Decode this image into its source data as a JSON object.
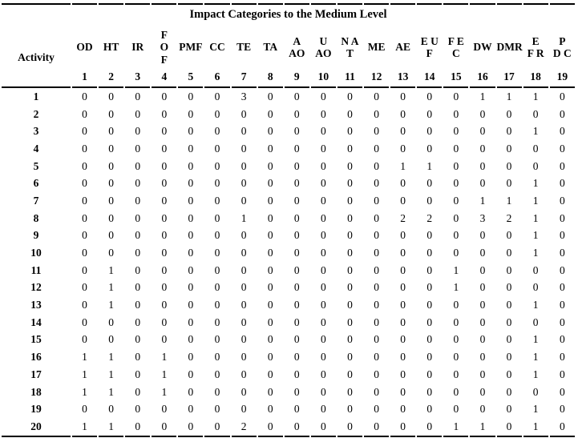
{
  "style": {
    "text_color": "#000000",
    "background": "#ffffff",
    "rule_color": "#000000"
  },
  "table": {
    "title": "Impact Categories to the Medium Level",
    "activity_header": "Activity",
    "columns": [
      {
        "abbr": "OD",
        "num": "1"
      },
      {
        "abbr": "HT",
        "num": "2"
      },
      {
        "abbr": "IR",
        "num": "3"
      },
      {
        "abbr": "F\nO\nF",
        "num": "4"
      },
      {
        "abbr": "PMF",
        "num": "5"
      },
      {
        "abbr": "CC",
        "num": "6"
      },
      {
        "abbr": "TE",
        "num": "7"
      },
      {
        "abbr": "TA",
        "num": "8"
      },
      {
        "abbr": "A\nAO",
        "num": "9"
      },
      {
        "abbr": "U\nAO",
        "num": "10"
      },
      {
        "abbr": "N A\nT",
        "num": "11"
      },
      {
        "abbr": "ME",
        "num": "12"
      },
      {
        "abbr": "AE",
        "num": "13"
      },
      {
        "abbr": "E U\nF",
        "num": "14"
      },
      {
        "abbr": "F E\nC",
        "num": "15"
      },
      {
        "abbr": "DW",
        "num": "16"
      },
      {
        "abbr": "DMR",
        "num": "17"
      },
      {
        "abbr": "E\nF R",
        "num": "18"
      },
      {
        "abbr": "P\nD C",
        "num": "19"
      }
    ],
    "rows": [
      {
        "activity": "1",
        "values": [
          0,
          0,
          0,
          0,
          0,
          0,
          3,
          0,
          0,
          0,
          0,
          0,
          0,
          0,
          0,
          1,
          1,
          1,
          0
        ]
      },
      {
        "activity": "2",
        "values": [
          0,
          0,
          0,
          0,
          0,
          0,
          0,
          0,
          0,
          0,
          0,
          0,
          0,
          0,
          0,
          0,
          0,
          0,
          0
        ]
      },
      {
        "activity": "3",
        "values": [
          0,
          0,
          0,
          0,
          0,
          0,
          0,
          0,
          0,
          0,
          0,
          0,
          0,
          0,
          0,
          0,
          0,
          1,
          0
        ]
      },
      {
        "activity": "4",
        "values": [
          0,
          0,
          0,
          0,
          0,
          0,
          0,
          0,
          0,
          0,
          0,
          0,
          0,
          0,
          0,
          0,
          0,
          0,
          0
        ]
      },
      {
        "activity": "5",
        "values": [
          0,
          0,
          0,
          0,
          0,
          0,
          0,
          0,
          0,
          0,
          0,
          0,
          1,
          1,
          0,
          0,
          0,
          0,
          0
        ]
      },
      {
        "activity": "6",
        "values": [
          0,
          0,
          0,
          0,
          0,
          0,
          0,
          0,
          0,
          0,
          0,
          0,
          0,
          0,
          0,
          0,
          0,
          1,
          0
        ]
      },
      {
        "activity": "7",
        "values": [
          0,
          0,
          0,
          0,
          0,
          0,
          0,
          0,
          0,
          0,
          0,
          0,
          0,
          0,
          0,
          1,
          1,
          1,
          0
        ]
      },
      {
        "activity": "8",
        "values": [
          0,
          0,
          0,
          0,
          0,
          0,
          1,
          0,
          0,
          0,
          0,
          0,
          2,
          2,
          0,
          3,
          2,
          1,
          0
        ]
      },
      {
        "activity": "9",
        "values": [
          0,
          0,
          0,
          0,
          0,
          0,
          0,
          0,
          0,
          0,
          0,
          0,
          0,
          0,
          0,
          0,
          0,
          1,
          0
        ]
      },
      {
        "activity": "10",
        "values": [
          0,
          0,
          0,
          0,
          0,
          0,
          0,
          0,
          0,
          0,
          0,
          0,
          0,
          0,
          0,
          0,
          0,
          1,
          0
        ]
      },
      {
        "activity": "11",
        "values": [
          0,
          1,
          0,
          0,
          0,
          0,
          0,
          0,
          0,
          0,
          0,
          0,
          0,
          0,
          1,
          0,
          0,
          0,
          0
        ]
      },
      {
        "activity": "12",
        "values": [
          0,
          1,
          0,
          0,
          0,
          0,
          0,
          0,
          0,
          0,
          0,
          0,
          0,
          0,
          1,
          0,
          0,
          0,
          0
        ]
      },
      {
        "activity": "13",
        "values": [
          0,
          1,
          0,
          0,
          0,
          0,
          0,
          0,
          0,
          0,
          0,
          0,
          0,
          0,
          0,
          0,
          0,
          1,
          0
        ]
      },
      {
        "activity": "14",
        "values": [
          0,
          0,
          0,
          0,
          0,
          0,
          0,
          0,
          0,
          0,
          0,
          0,
          0,
          0,
          0,
          0,
          0,
          0,
          0
        ]
      },
      {
        "activity": "15",
        "values": [
          0,
          0,
          0,
          0,
          0,
          0,
          0,
          0,
          0,
          0,
          0,
          0,
          0,
          0,
          0,
          0,
          0,
          1,
          0
        ]
      },
      {
        "activity": "16",
        "values": [
          1,
          1,
          0,
          1,
          0,
          0,
          0,
          0,
          0,
          0,
          0,
          0,
          0,
          0,
          0,
          0,
          0,
          1,
          0
        ]
      },
      {
        "activity": "17",
        "values": [
          1,
          1,
          0,
          1,
          0,
          0,
          0,
          0,
          0,
          0,
          0,
          0,
          0,
          0,
          0,
          0,
          0,
          1,
          0
        ]
      },
      {
        "activity": "18",
        "values": [
          1,
          1,
          0,
          1,
          0,
          0,
          0,
          0,
          0,
          0,
          0,
          0,
          0,
          0,
          0,
          0,
          0,
          0,
          0
        ]
      },
      {
        "activity": "19",
        "values": [
          0,
          0,
          0,
          0,
          0,
          0,
          0,
          0,
          0,
          0,
          0,
          0,
          0,
          0,
          0,
          0,
          0,
          1,
          0
        ]
      },
      {
        "activity": "20",
        "values": [
          1,
          1,
          0,
          0,
          0,
          0,
          2,
          0,
          0,
          0,
          0,
          0,
          0,
          0,
          1,
          1,
          0,
          1,
          0
        ]
      }
    ]
  }
}
